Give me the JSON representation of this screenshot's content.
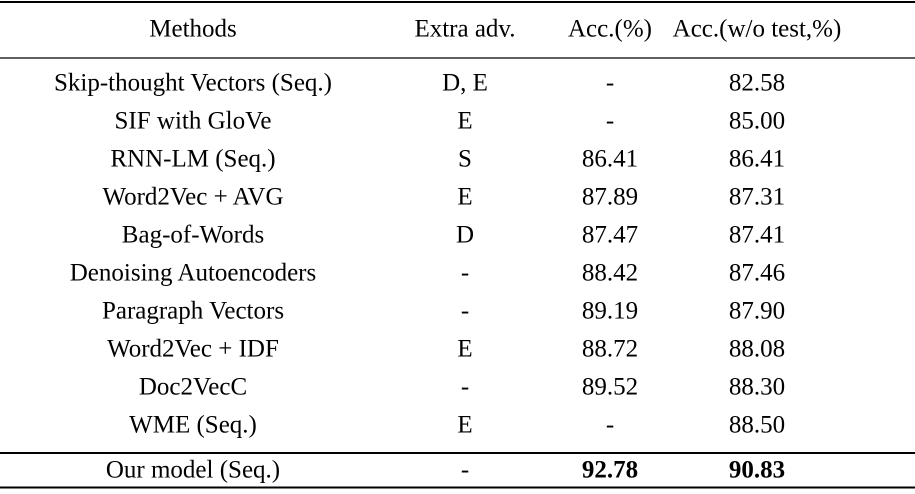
{
  "table": {
    "header": [
      "Methods",
      "Extra adv.",
      "Acc.(%)",
      "Acc.(w/o test,%)"
    ],
    "rows": [
      [
        "Skip-thought Vectors (Seq.)",
        "D, E",
        "-",
        "82.58"
      ],
      [
        "SIF with GloVe",
        "E",
        "-",
        "85.00"
      ],
      [
        "RNN-LM (Seq.)",
        "S",
        "86.41",
        "86.41"
      ],
      [
        "Word2Vec + AVG",
        "E",
        "87.89",
        "87.31"
      ],
      [
        "Bag-of-Words",
        "D",
        "87.47",
        "87.41"
      ],
      [
        "Denoising Autoencoders",
        "-",
        "88.42",
        "87.46"
      ],
      [
        "Paragraph Vectors",
        "-",
        "89.19",
        "87.90"
      ],
      [
        "Word2Vec + IDF",
        "E",
        "88.72",
        "88.08"
      ],
      [
        "Doc2VecC",
        "-",
        "89.52",
        "88.30"
      ],
      [
        "WME (Seq.)",
        "E",
        "-",
        "88.50"
      ]
    ],
    "footer": [
      "Our model (Seq.)",
      "-",
      "92.78",
      "90.83"
    ]
  }
}
